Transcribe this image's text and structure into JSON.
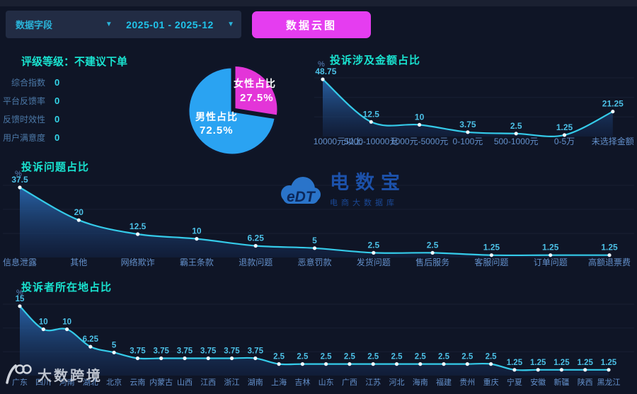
{
  "toolbar": {
    "field_label": "数据字段",
    "date_range": "2025-01 - 2025-12",
    "cloud_button": "数据云图"
  },
  "rating": {
    "title": "评级等级：不建议下单",
    "items": [
      {
        "label": "综合指数",
        "value": "0"
      },
      {
        "label": "平台反馈率",
        "value": "0"
      },
      {
        "label": "反馈时效性",
        "value": "0"
      },
      {
        "label": "用户满意度",
        "value": "0"
      }
    ]
  },
  "chart_data": [
    {
      "id": "gender",
      "type": "pie",
      "title": "",
      "series": [
        {
          "key": "male",
          "name": "男性占比",
          "value": 72.5,
          "label": "72.5%",
          "color": "#2aa3f2",
          "explode": false
        },
        {
          "key": "female",
          "name": "女性占比",
          "value": 27.5,
          "label": "27.5%",
          "color": "#e335d8",
          "explode": true
        }
      ]
    },
    {
      "id": "money",
      "type": "line",
      "title": "投诉涉及金额占比",
      "ylabel": "%",
      "categories": [
        "10000元以上",
        "5000-10000元",
        "1000元-5000元",
        "0-100元",
        "500-1000元",
        "0-5万",
        "未选择金额"
      ],
      "values": [
        48.75,
        12.5,
        10,
        3.75,
        2.5,
        1.25,
        21.25
      ],
      "ylim": [
        0,
        55
      ],
      "legend": "none",
      "grid": "faint"
    },
    {
      "id": "problems",
      "type": "line",
      "title": "投诉问题占比",
      "ylabel": "%",
      "categories": [
        "信息泄露",
        "其他",
        "网络欺诈",
        "霸王条款",
        "退款问题",
        "恶意罚款",
        "发货问题",
        "售后服务",
        "客服问题",
        "订单问题",
        "高额退票费"
      ],
      "values": [
        37.5,
        20,
        12.5,
        10,
        6.25,
        5,
        2.5,
        2.5,
        1.25,
        1.25,
        1.25
      ],
      "ylim": [
        0,
        45
      ],
      "legend": "none",
      "grid": "faint"
    },
    {
      "id": "locations",
      "type": "line",
      "title": "投诉者所在地占比",
      "ylabel": "%",
      "categories": [
        "广东",
        "四川",
        "河南",
        "湖北",
        "北京",
        "云南",
        "内蒙古",
        "山西",
        "江西",
        "浙江",
        "湖南",
        "上海",
        "吉林",
        "山东",
        "广西",
        "江苏",
        "河北",
        "海南",
        "福建",
        "贵州",
        "重庆",
        "宁夏",
        "安徽",
        "新疆",
        "陕西",
        "黑龙江"
      ],
      "values": [
        15,
        10,
        10,
        6.25,
        5,
        3.75,
        3.75,
        3.75,
        3.75,
        3.75,
        3.75,
        2.5,
        2.5,
        2.5,
        2.5,
        2.5,
        2.5,
        2.5,
        2.5,
        2.5,
        2.5,
        1.25,
        1.25,
        1.25,
        1.25,
        1.25
      ],
      "ylim": [
        0,
        17
      ],
      "legend": "none",
      "grid": "faint"
    }
  ],
  "watermark": {
    "logo_text": "eDT",
    "name": "电数宝",
    "subtitle": "电商大数据库"
  },
  "footer_logo": {
    "text": "大数跨境"
  },
  "colors": {
    "background": "#0f1526",
    "panel": "#222c44",
    "accent_teal": "#19e2cf",
    "line_cyan": "#35cbe9",
    "value_label": "#4cc0e6",
    "category_label": "#6390cb",
    "pie_blue": "#2aa3f2",
    "pie_magenta": "#e335d8",
    "button_magenta": "#e53df0"
  }
}
